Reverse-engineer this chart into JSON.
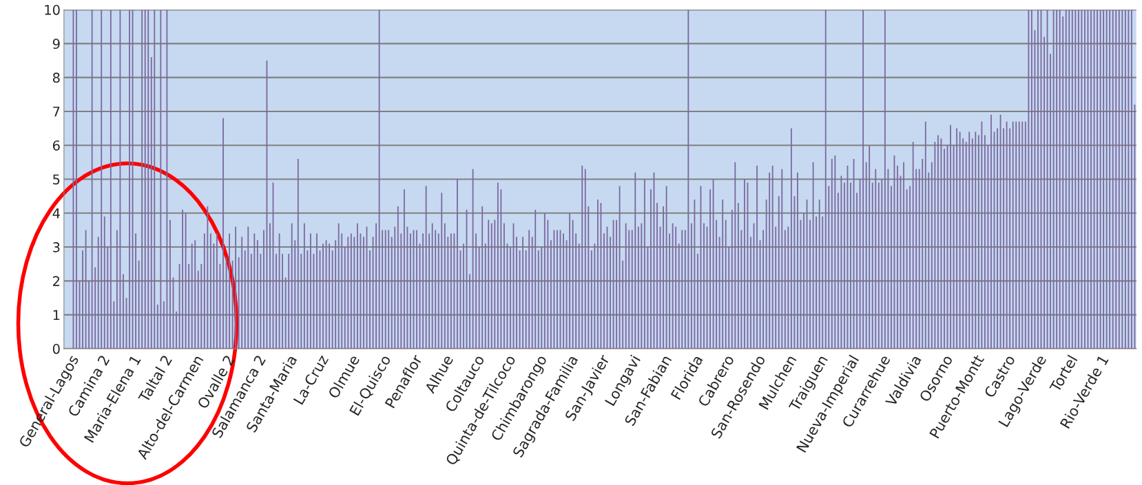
{
  "chart_data": {
    "type": "bar",
    "categories": [
      "General-Lagos",
      null,
      null,
      null,
      null,
      null,
      null,
      null,
      null,
      null,
      "Camina 2",
      null,
      null,
      null,
      null,
      null,
      null,
      null,
      null,
      null,
      "Maria-Elena 1",
      null,
      null,
      null,
      null,
      null,
      null,
      null,
      null,
      null,
      "Taltal 2",
      null,
      null,
      null,
      null,
      null,
      null,
      null,
      null,
      null,
      "Alto-del-Carmen",
      null,
      null,
      null,
      null,
      null,
      null,
      null,
      null,
      null,
      "Ovalle 2",
      null,
      null,
      null,
      null,
      null,
      null,
      null,
      null,
      null,
      "Salamanca 2",
      null,
      null,
      null,
      null,
      null,
      null,
      null,
      null,
      null,
      "Santa-Maria",
      null,
      null,
      null,
      null,
      null,
      null,
      null,
      null,
      null,
      "La-Cruz",
      null,
      null,
      null,
      null,
      null,
      null,
      null,
      null,
      null,
      "Olmue",
      null,
      null,
      null,
      null,
      null,
      null,
      null,
      null,
      null,
      "El-Quisco",
      null,
      null,
      null,
      null,
      null,
      null,
      null,
      null,
      null,
      "Penaflor",
      null,
      null,
      null,
      null,
      null,
      null,
      null,
      null,
      null,
      "Alhue",
      null,
      null,
      null,
      null,
      null,
      null,
      null,
      null,
      null,
      "Coltauco",
      null,
      null,
      null,
      null,
      null,
      null,
      null,
      null,
      null,
      "Quinta-de-Tilcoco",
      null,
      null,
      null,
      null,
      null,
      null,
      null,
      null,
      null,
      "Chimbarongo",
      null,
      null,
      null,
      null,
      null,
      null,
      null,
      null,
      null,
      "Sagrada-Familia",
      null,
      null,
      null,
      null,
      null,
      null,
      null,
      null,
      null,
      "San-Javier",
      null,
      null,
      null,
      null,
      null,
      null,
      null,
      null,
      null,
      "Longavi",
      null,
      null,
      null,
      null,
      null,
      null,
      null,
      null,
      null,
      "San-Fabian",
      null,
      null,
      null,
      null,
      null,
      null,
      null,
      null,
      null,
      "Florida",
      null,
      null,
      null,
      null,
      null,
      null,
      null,
      null,
      null,
      "Cabrero",
      null,
      null,
      null,
      null,
      null,
      null,
      null,
      null,
      null,
      "San-Rosendo",
      null,
      null,
      null,
      null,
      null,
      null,
      null,
      null,
      null,
      "Mulchen",
      null,
      null,
      null,
      null,
      null,
      null,
      null,
      null,
      null,
      "Traiguen",
      null,
      null,
      null,
      null,
      null,
      null,
      null,
      null,
      null,
      "Nueva-Imperial",
      null,
      null,
      null,
      null,
      null,
      null,
      null,
      null,
      null,
      "Curarrehue",
      null,
      null,
      null,
      null,
      null,
      null,
      null,
      null,
      null,
      "Valdivia",
      null,
      null,
      null,
      null,
      null,
      null,
      null,
      null,
      null,
      "Osorno",
      null,
      null,
      null,
      null,
      null,
      null,
      null,
      null,
      null,
      "Puerto-Montt",
      null,
      null,
      null,
      null,
      null,
      null,
      null,
      null,
      null,
      "Castro",
      null,
      null,
      null,
      null,
      null,
      null,
      null,
      null,
      null,
      "Lago-Verde",
      null,
      null,
      null,
      null,
      null,
      null,
      null,
      null,
      null,
      "Tortel",
      null,
      null,
      null,
      null,
      null,
      null,
      null,
      null,
      null,
      "Rio-Verde 1",
      null,
      null,
      null,
      null,
      null,
      null,
      null,
      null,
      null,
      null
    ],
    "values": [
      10,
      10,
      2.0,
      2.9,
      3.5,
      2.0,
      10,
      2.4,
      3.3,
      10,
      3.9,
      3.0,
      10,
      1.4,
      3.5,
      10,
      2.2,
      1.5,
      10,
      10,
      3.4,
      2.6,
      10,
      10,
      10,
      8.6,
      10,
      1.3,
      10,
      1.4,
      10,
      3.8,
      2.1,
      1.1,
      2.5,
      4.1,
      4.0,
      2.5,
      3.1,
      3.2,
      2.3,
      2.5,
      3.4,
      4.2,
      3.4,
      3.1,
      3.4,
      2.5,
      6.8,
      2.7,
      3.4,
      2.6,
      3.6,
      2.7,
      3.3,
      2.9,
      3.6,
      2.8,
      3.4,
      3.2,
      2.8,
      3.5,
      8.5,
      3.7,
      4.9,
      2.8,
      3.4,
      2.8,
      2.1,
      2.8,
      3.7,
      3.2,
      5.6,
      2.8,
      3.7,
      2.9,
      3.4,
      2.8,
      3.4,
      2.9,
      3.1,
      3.2,
      3.1,
      2.9,
      3.2,
      3.7,
      3.4,
      3.0,
      3.3,
      3.4,
      3.3,
      3.7,
      3.4,
      3.3,
      3.6,
      2.9,
      3.3,
      3.7,
      10,
      3.5,
      3.5,
      3.5,
      3.3,
      3.6,
      4.2,
      3.4,
      4.7,
      3.6,
      3.4,
      3.5,
      3.5,
      3.1,
      3.4,
      4.8,
      3.4,
      3.7,
      3.5,
      3.4,
      4.6,
      3.7,
      3.3,
      3.4,
      3.4,
      5.0,
      2.9,
      3.1,
      4.1,
      2.2,
      5.3,
      3.4,
      3.0,
      4.2,
      3.1,
      3.8,
      3.7,
      3.8,
      4.9,
      4.7,
      3.7,
      3.1,
      3.0,
      3.7,
      3.3,
      2.9,
      3.3,
      2.9,
      3.5,
      3.3,
      4.1,
      2.9,
      3.0,
      4.0,
      3.8,
      3.2,
      3.5,
      3.5,
      3.5,
      3.4,
      3.2,
      4.0,
      3.8,
      3.4,
      3.1,
      5.4,
      5.3,
      4.2,
      2.9,
      3.1,
      4.4,
      4.3,
      3.4,
      3.6,
      3.3,
      3.8,
      3.8,
      4.8,
      2.6,
      3.7,
      3.5,
      3.5,
      5.2,
      3.6,
      3.7,
      5.0,
      3.0,
      4.7,
      5.2,
      4.3,
      3.6,
      4.2,
      4.8,
      3.4,
      3.7,
      3.6,
      3.1,
      3.5,
      3.5,
      10,
      3.7,
      4.4,
      2.8,
      4.8,
      3.7,
      3.6,
      4.7,
      5.0,
      3.8,
      3.3,
      4.4,
      3.8,
      3.0,
      4.1,
      5.5,
      4.3,
      3.5,
      5.0,
      4.9,
      3.3,
      3.7,
      5.4,
      3.2,
      3.5,
      4.4,
      5.2,
      5.4,
      3.6,
      4.5,
      5.3,
      3.5,
      3.6,
      6.5,
      4.5,
      5.2,
      3.8,
      4.0,
      4.4,
      3.8,
      5.5,
      3.9,
      4.4,
      3.9,
      10,
      4.8,
      5.6,
      5.7,
      4.6,
      5.1,
      4.9,
      5.4,
      4.9,
      5.6,
      4.6,
      5.0,
      10,
      5.5,
      6.0,
      4.9,
      5.3,
      4.9,
      5.0,
      10,
      5.3,
      4.8,
      5.7,
      5.4,
      5.1,
      5.5,
      4.7,
      4.8,
      6.1,
      5.3,
      5.3,
      5.6,
      6.7,
      5.2,
      5.5,
      6.1,
      6.3,
      6.2,
      5.9,
      6.0,
      6.6,
      6.0,
      6.5,
      6.4,
      6.2,
      6.1,
      6.4,
      6.2,
      6.4,
      6.3,
      6.7,
      6.3,
      6.0,
      6.9,
      6.4,
      6.5,
      6.9,
      6.5,
      6.7,
      6.5,
      6.7,
      6.7,
      6.7,
      6.7,
      6.7,
      10,
      10,
      9.4,
      10,
      10,
      9.2,
      10,
      8.7,
      10,
      10,
      10,
      9.8,
      10,
      10,
      10,
      10,
      10,
      10,
      10,
      10,
      10,
      10,
      10,
      10,
      10,
      10,
      10,
      10,
      10,
      10,
      10,
      10,
      10,
      10,
      7.2
    ],
    "color": "#7b68a0",
    "ylim": [
      0,
      10
    ],
    "yticks": [
      0,
      1,
      2,
      3,
      4,
      5,
      6,
      7,
      8,
      9,
      10
    ],
    "grid": "y"
  }
}
